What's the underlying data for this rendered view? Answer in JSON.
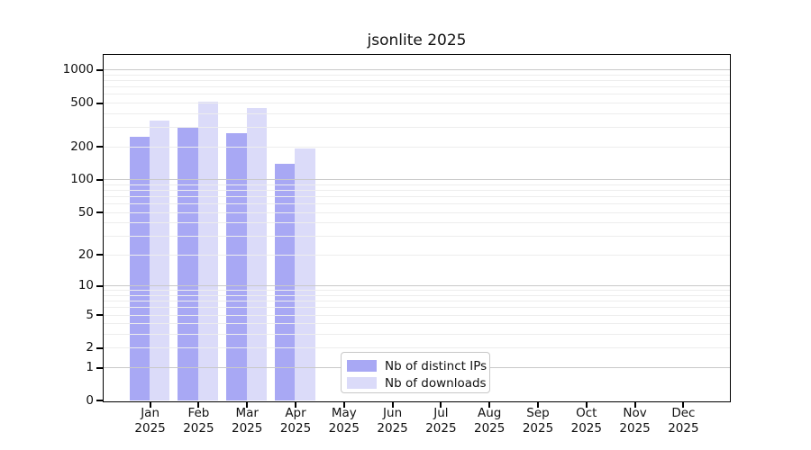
{
  "figure": {
    "title": "jsonlite 2025"
  },
  "chart_data": {
    "type": "bar",
    "title": "jsonlite 2025",
    "x": {
      "months": [
        "Jan",
        "Feb",
        "Mar",
        "Apr",
        "May",
        "Jun",
        "Jul",
        "Aug",
        "Sep",
        "Oct",
        "Nov",
        "Dec"
      ],
      "year": "2025"
    },
    "series": [
      {
        "name": "Nb of distinct IPs",
        "color": "#a8a8f4",
        "values": [
          245,
          299,
          263,
          140,
          0,
          0,
          0,
          0,
          0,
          0,
          0,
          0
        ]
      },
      {
        "name": "Nb of downloads",
        "color": "#dbdbf9",
        "values": [
          346,
          509,
          448,
          192,
          0,
          0,
          0,
          0,
          0,
          0,
          0,
          0
        ]
      }
    ],
    "y_axis": {
      "scale": "log1p",
      "tick_values": [
        0,
        1,
        2,
        5,
        10,
        20,
        50,
        100,
        200,
        500,
        1000
      ],
      "major_grid": [
        1,
        10,
        100,
        1000
      ],
      "minor_grid": [
        2,
        3,
        4,
        5,
        6,
        7,
        8,
        9,
        20,
        30,
        40,
        50,
        60,
        70,
        80,
        90,
        200,
        300,
        400,
        500,
        600,
        700,
        800,
        900
      ],
      "ylim": [
        0,
        1360
      ]
    },
    "legend": {
      "position": "lower center",
      "entries": [
        "Nb of distinct IPs",
        "Nb of downloads"
      ]
    },
    "grid": "on",
    "grid_above_bars": true
  },
  "colors": {
    "background": "#ffffff",
    "axis": "#000000",
    "text": "#111111",
    "major_grid": "#c9c9c9",
    "minor_grid": "#ededed",
    "legend_border": "#c8c8c8",
    "bar_distinct_ips": "#a8a8f4",
    "bar_downloads": "#dbdbf9"
  }
}
